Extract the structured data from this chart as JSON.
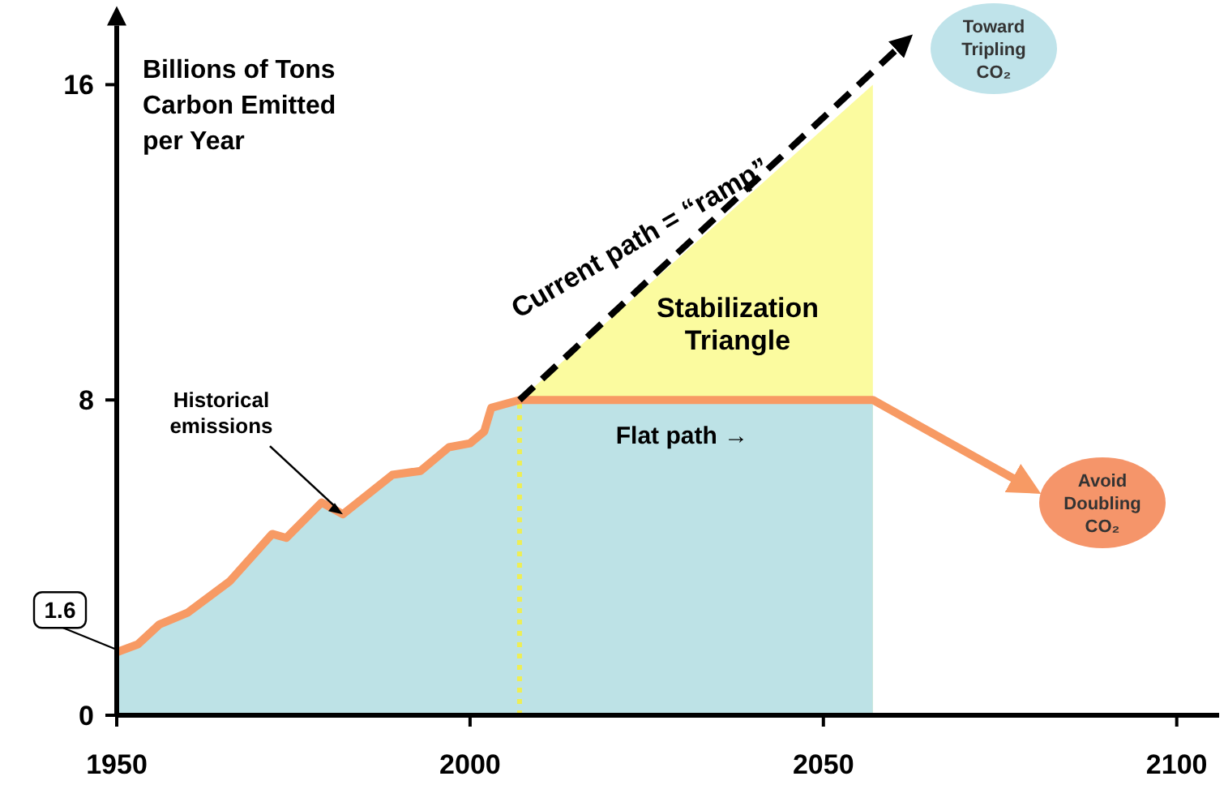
{
  "chart_data": {
    "type": "line",
    "ylabel": "Billions of Tons Carbon Emitted per Year",
    "xlim": [
      1950,
      2106
    ],
    "ylim": [
      0,
      17.5
    ],
    "xticks": [
      1950,
      2000,
      2050,
      2100
    ],
    "yticks": [
      0,
      8,
      16
    ],
    "series": [
      {
        "type": "area",
        "color": "#fbfb9f",
        "x": [
          2007,
          2057
        ],
        "values": [
          8,
          16
        ]
      },
      {
        "type": "area",
        "color": "#bde2e6",
        "x": [
          1950,
          1953,
          1956,
          1960,
          1966,
          1972,
          1974,
          1979,
          1982,
          1989,
          1993,
          1997,
          2000,
          2002,
          2003,
          2007,
          2057
        ],
        "values": [
          1.6,
          1.8,
          2.3,
          2.6,
          3.4,
          4.6,
          4.5,
          5.4,
          5.1,
          6.1,
          6.2,
          6.8,
          6.9,
          7.2,
          7.8,
          8,
          8
        ]
      },
      {
        "color": "#f79a64",
        "x": [
          1950,
          1953,
          1956,
          1960,
          1966,
          1972,
          1974,
          1979,
          1982,
          1989,
          1993,
          1997,
          2000,
          2002,
          2003,
          2007,
          2057,
          2078
        ],
        "values": [
          1.6,
          1.8,
          2.3,
          2.6,
          3.4,
          4.6,
          4.5,
          5.4,
          5.1,
          6.1,
          6.2,
          6.8,
          6.9,
          7.2,
          7.8,
          8,
          8,
          5.9
        ]
      },
      {
        "color": "#000000",
        "line_style": "dashed",
        "x": [
          2007,
          2061
        ],
        "values": [
          8,
          17
        ]
      }
    ],
    "ref_lines": [
      {
        "axis": "x",
        "value": 2007,
        "color": "#eeee55",
        "line_style": "dotted"
      }
    ],
    "annotations": [
      {
        "text": "1.6",
        "x": 1950,
        "y": 1.6
      },
      {
        "text": "Historical emissions",
        "x": 1982,
        "y": 5.1
      },
      {
        "text": "Current path = “ramp”",
        "x": 2027,
        "y": 11.2
      },
      "Stabilization Triangle",
      {
        "text": "Flat path →",
        "x": 2030,
        "y": 8
      },
      "Toward Tripling CO₂",
      "Avoid Doubling CO₂"
    ]
  }
}
